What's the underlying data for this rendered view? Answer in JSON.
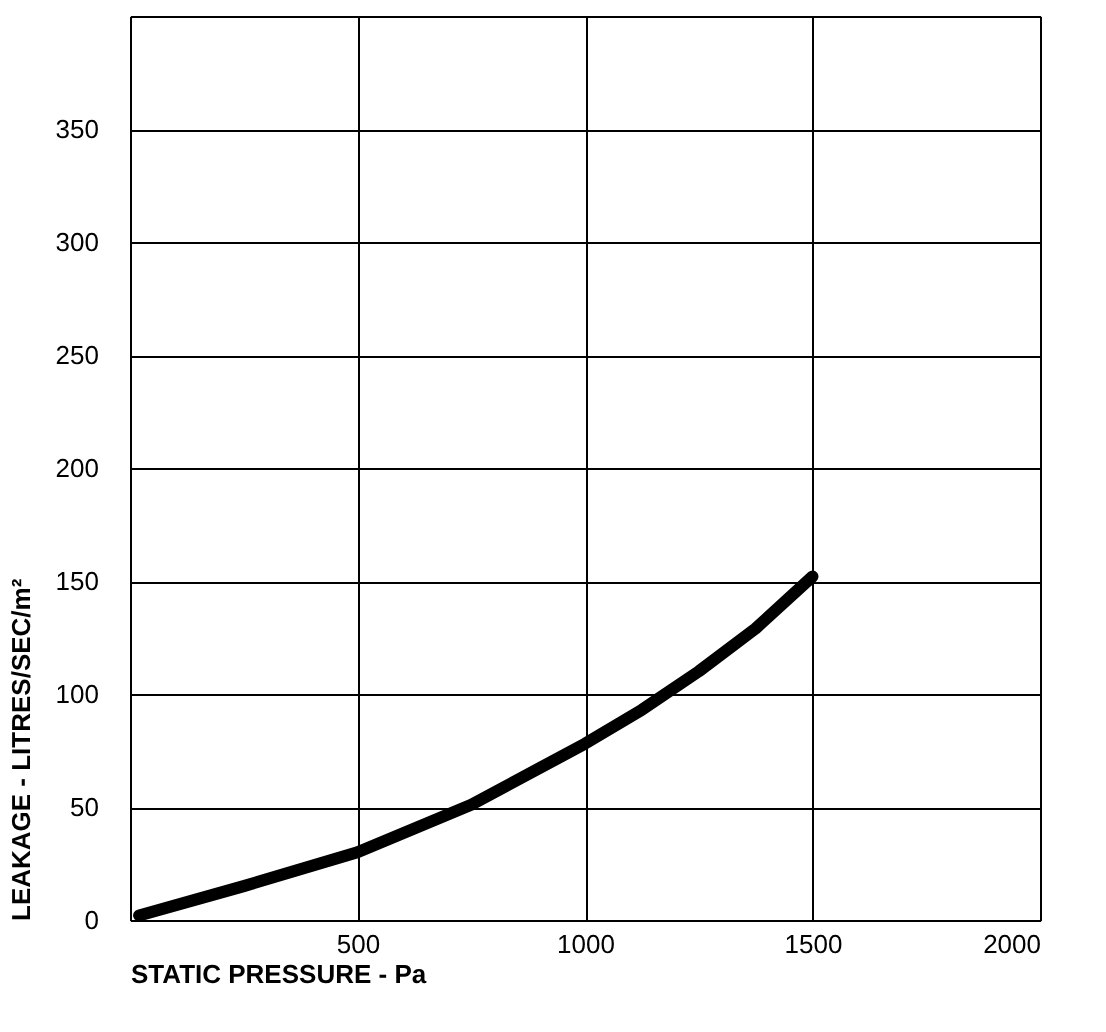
{
  "chart_data": {
    "type": "line",
    "xlabel": "STATIC PRESSURE - Pa",
    "ylabel": "LEAKAGE - LITRES/SEC/m²",
    "x": [
      20,
      250,
      500,
      750,
      1000,
      1125,
      1250,
      1375,
      1500
    ],
    "series": [
      {
        "color": "#000000",
        "values": [
          2,
          15,
          30,
          51,
          78,
          93,
          110,
          129,
          152
        ]
      }
    ],
    "xlim": [
      0,
      2000
    ],
    "xticks": [
      {
        "value": 0,
        "label": null
      },
      500,
      1000,
      1500,
      2000
    ],
    "ylim": [
      0,
      400
    ],
    "yticks": [
      0,
      50,
      100,
      150,
      200,
      250,
      300,
      350,
      {
        "value": 400,
        "label": null
      }
    ],
    "grid": true,
    "marker": "none",
    "line_style": "solid"
  }
}
